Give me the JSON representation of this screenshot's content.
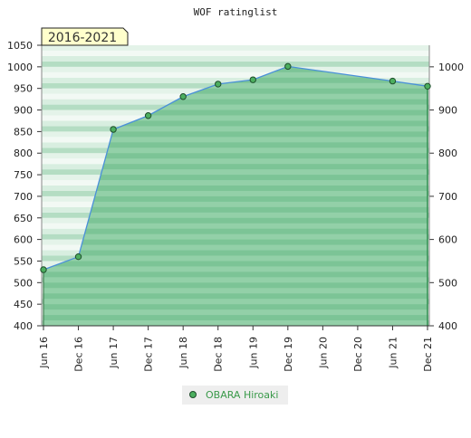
{
  "chart_data": {
    "type": "area",
    "title": "WOF ratinglist",
    "period_badge": "2016-2021",
    "xlabel": "",
    "ylabel": "",
    "categories": [
      "Jun 16",
      "Dec 16",
      "Jun 17",
      "Dec 17",
      "Jun 18",
      "Dec 18",
      "Jun 19",
      "Dec 19",
      "Jun 20",
      "Dec 20",
      "Jun 21",
      "Dec 21"
    ],
    "ylim": [
      400,
      1050
    ],
    "yticks_left": [
      400,
      450,
      500,
      550,
      600,
      650,
      700,
      750,
      800,
      850,
      900,
      950,
      1000,
      1050
    ],
    "yticks_right": [
      400,
      500,
      600,
      700,
      800,
      900,
      1000
    ],
    "series": [
      {
        "name": "OBARA Hiroaki",
        "x": [
          "Jun 16",
          "Dec 16",
          "Jun 17",
          "Dec 17",
          "Jun 18",
          "Dec 18",
          "Jun 19",
          "Dec 19",
          "Jun 21",
          "Dec 21"
        ],
        "values": [
          530,
          560,
          855,
          887,
          931,
          960,
          970,
          1001,
          967,
          955
        ]
      }
    ],
    "legend_position": "bottom-center",
    "grid": true,
    "colors": {
      "line": "#4a90d9",
      "fill": "#6dbf87",
      "marker": "#4caf5f",
      "marker_edge": "#1e4d2b",
      "badge_bg": "#ffffcc",
      "legend_text": "#3a9a4a"
    }
  }
}
